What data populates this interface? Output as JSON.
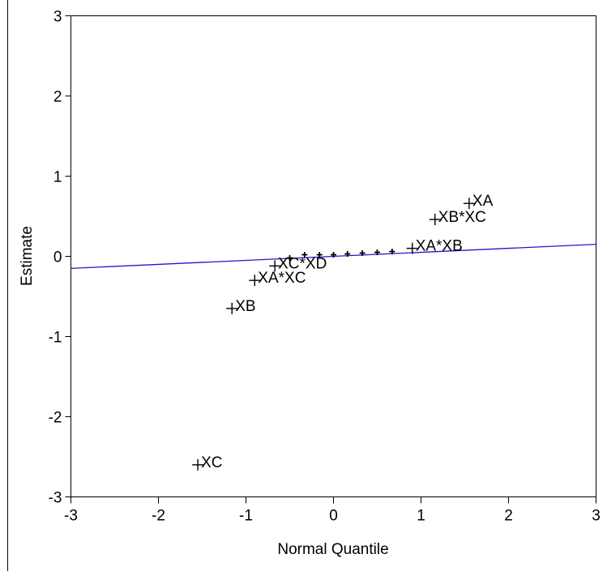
{
  "chart_data": {
    "type": "scatter",
    "title": "",
    "xlabel": "Normal Quantile",
    "ylabel": "Estimate",
    "xlim": [
      -3,
      3
    ],
    "ylim": [
      -3,
      3
    ],
    "xticks": [
      "-3",
      "-2",
      "-1",
      "0",
      "1",
      "2",
      "3"
    ],
    "yticks": [
      "-3",
      "-2",
      "-1",
      "0",
      "1",
      "2",
      "3"
    ],
    "grid": false,
    "marker": "+",
    "line_color": "#1a1acc",
    "reference_line": {
      "slope": 0.05,
      "intercept": 0.0
    },
    "points": [
      {
        "label": "XC",
        "x": -1.55,
        "y": -2.6
      },
      {
        "label": "XB",
        "x": -1.16,
        "y": -0.65
      },
      {
        "label": "XA*XC",
        "x": -0.9,
        "y": -0.3
      },
      {
        "label": "XC*XD",
        "x": -0.67,
        "y": -0.12
      },
      {
        "label": "",
        "x": -0.5,
        "y": -0.02
      },
      {
        "label": "",
        "x": -0.33,
        "y": 0.02
      },
      {
        "label": "",
        "x": -0.16,
        "y": 0.02
      },
      {
        "label": "",
        "x": 0.0,
        "y": 0.02
      },
      {
        "label": "",
        "x": 0.16,
        "y": 0.03
      },
      {
        "label": "",
        "x": 0.33,
        "y": 0.04
      },
      {
        "label": "",
        "x": 0.5,
        "y": 0.05
      },
      {
        "label": "",
        "x": 0.67,
        "y": 0.06
      },
      {
        "label": "XA*XB",
        "x": 0.9,
        "y": 0.1
      },
      {
        "label": "XB*XC",
        "x": 1.16,
        "y": 0.46
      },
      {
        "label": "XA",
        "x": 1.55,
        "y": 0.66
      }
    ]
  }
}
